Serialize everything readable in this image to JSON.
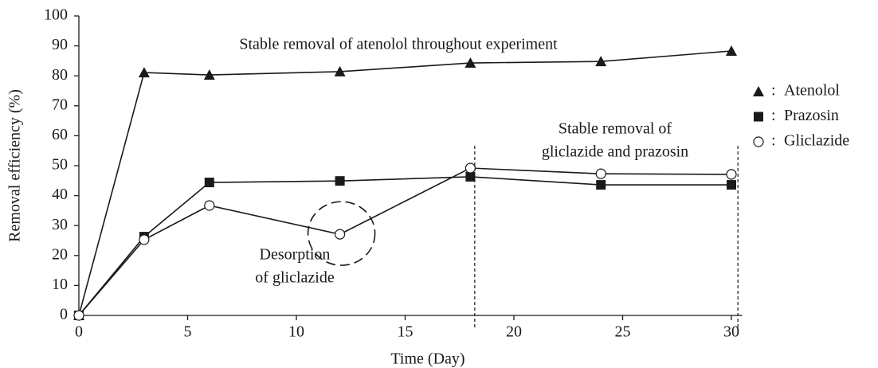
{
  "chart_data": {
    "type": "line",
    "xlabel": "Time (Day)",
    "ylabel": "Removal efficiency (%)",
    "x": [
      0,
      3,
      6,
      12,
      18,
      24,
      30
    ],
    "series": [
      {
        "name": "Atenolol",
        "color": "#1a1a1a",
        "marker": "triangle",
        "values": [
          0,
          81.1,
          80.3,
          81.4,
          84.3,
          84.8,
          88.3
        ]
      },
      {
        "name": "Prazosin",
        "color": "#1a1a1a",
        "marker": "square",
        "values": [
          0,
          26.3,
          44.4,
          44.9,
          46.3,
          43.6,
          43.6
        ]
      },
      {
        "name": "Gliclazide",
        "color": "#1a1a1a",
        "marker": "circle",
        "values": [
          0,
          25.3,
          36.7,
          27.1,
          49.2,
          47.3,
          47.1
        ]
      }
    ],
    "legend_separator": ":",
    "annotations": [
      "Stable removal of atenolol throughout experiment",
      "Stable removal of",
      "gliclazide and prazosin",
      "Desorption",
      "of gliclazide"
    ],
    "vlines": [
      18.2,
      30.3
    ],
    "xlim": [
      0,
      30.5
    ],
    "ylim": [
      0,
      100
    ],
    "xticks": [
      0,
      5,
      10,
      15,
      20,
      25,
      30
    ],
    "yticks": [
      0,
      10,
      20,
      30,
      40,
      50,
      60,
      70,
      80,
      90,
      100
    ],
    "grid": false
  }
}
